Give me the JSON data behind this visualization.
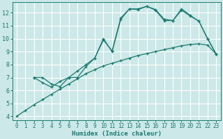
{
  "background_color": "#cce8e8",
  "grid_color": "#ffffff",
  "line_color": "#1a7a6e",
  "xlabel": "Humidex (Indice chaleur)",
  "xlim": [
    -0.5,
    23.5
  ],
  "ylim": [
    3.7,
    12.8
  ],
  "xticks": [
    0,
    1,
    2,
    3,
    4,
    5,
    6,
    7,
    8,
    9,
    10,
    11,
    12,
    13,
    14,
    15,
    16,
    17,
    18,
    19,
    20,
    21,
    22,
    23
  ],
  "yticks": [
    4,
    5,
    6,
    7,
    8,
    9,
    10,
    11,
    12
  ],
  "line1_x": [
    0,
    1,
    2,
    3,
    4,
    5,
    6,
    7,
    8,
    9,
    10,
    11,
    12,
    13,
    14,
    15,
    16,
    17,
    18,
    19,
    20,
    21,
    22,
    23
  ],
  "line1_y": [
    4.0,
    4.45,
    4.9,
    5.3,
    5.7,
    6.1,
    6.5,
    6.9,
    7.3,
    7.6,
    7.9,
    8.1,
    8.3,
    8.5,
    8.7,
    8.85,
    9.0,
    9.15,
    9.3,
    9.45,
    9.55,
    9.6,
    9.5,
    8.8
  ],
  "line2_x": [
    2,
    3,
    4,
    5,
    6,
    7,
    8,
    9,
    10,
    11,
    12,
    13,
    14,
    15,
    16,
    17,
    18,
    19,
    20,
    21,
    22,
    23
  ],
  "line2_y": [
    7.0,
    7.0,
    6.5,
    6.3,
    7.0,
    7.0,
    7.85,
    8.5,
    9.9,
    9.05,
    11.6,
    12.3,
    12.25,
    12.5,
    12.25,
    11.5,
    11.4,
    12.3,
    11.8,
    11.35,
    10.0,
    8.8
  ],
  "line3_x": [
    2,
    3,
    4,
    5,
    6,
    7,
    8,
    9,
    10,
    11,
    12,
    13,
    14,
    15,
    16,
    17,
    18,
    19,
    20,
    21,
    22,
    23
  ],
  "line3_y": [
    7.0,
    6.6,
    6.25,
    6.7,
    7.0,
    7.5,
    8.0,
    8.5,
    10.0,
    9.0,
    11.5,
    12.3,
    12.3,
    12.5,
    12.2,
    11.4,
    11.4,
    12.2,
    11.75,
    11.35,
    10.0,
    8.8
  ],
  "tick_fontsize": 5.5,
  "xlabel_fontsize": 6.5
}
